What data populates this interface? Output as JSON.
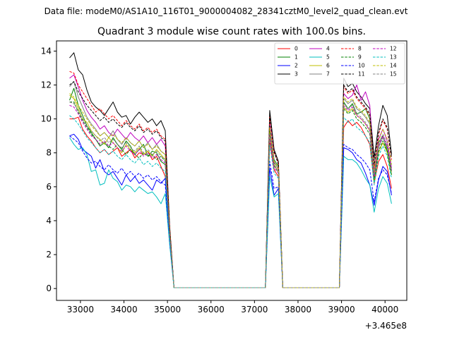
{
  "chart_data": {
    "type": "line",
    "suptitle": "Data file: modeM0/AS1A10_116T01_9000004082_28341cztM0_level2_quad_clean.evt",
    "title": "Quadrant 3 module wise count rates with 100.0s bins.",
    "xlabel": "",
    "ylabel": "",
    "x_offset_label": "+3.465e8",
    "xlim": [
      32450,
      40500
    ],
    "ylim": [
      -0.7,
      14.6
    ],
    "xticks": [
      33000,
      34000,
      35000,
      36000,
      37000,
      38000,
      39000,
      40000
    ],
    "xtick_labels": [
      "33000",
      "34000",
      "35000",
      "36000",
      "37000",
      "38000",
      "39000",
      "40000"
    ],
    "yticks": [
      0,
      2,
      4,
      6,
      8,
      10,
      12,
      14
    ],
    "ytick_labels": [
      "0",
      "2",
      "4",
      "6",
      "8",
      "10",
      "12",
      "14"
    ],
    "legend_position": "top-right",
    "legend_columns": 4,
    "x": [
      32750,
      32850,
      32950,
      33050,
      33150,
      33250,
      33350,
      33450,
      33550,
      33650,
      33750,
      33850,
      33950,
      34050,
      34150,
      34250,
      34350,
      34450,
      34550,
      34650,
      34750,
      34850,
      34950,
      35050,
      35150,
      35250,
      37150,
      37250,
      37350,
      37450,
      37550,
      37650,
      37750,
      38850,
      38950,
      39050,
      39150,
      39250,
      39350,
      39450,
      39550,
      39650,
      39750,
      39850,
      39950,
      40050,
      40150
    ],
    "series": [
      {
        "name": "0",
        "color": "#ff0000",
        "dash": "solid",
        "values": [
          10.0,
          10.0,
          10.1,
          9.4,
          9.0,
          8.7,
          8.3,
          8.0,
          8.2,
          7.9,
          8.1,
          8.3,
          7.8,
          8.0,
          8.2,
          7.7,
          8.0,
          7.9,
          8.1,
          7.6,
          7.8,
          7.2,
          6.6,
          3.0,
          0.05,
          0.05,
          0.05,
          0.05,
          8.7,
          7.0,
          6.6,
          0.05,
          0.05,
          0.05,
          0.05,
          9.5,
          9.9,
          9.6,
          9.8,
          9.5,
          9.0,
          8.5,
          6.2,
          7.5,
          7.9,
          7.2,
          5.9
        ]
      },
      {
        "name": "1",
        "color": "#008000",
        "dash": "solid",
        "values": [
          11.1,
          11.8,
          10.8,
          10.2,
          9.6,
          9.2,
          8.8,
          8.4,
          8.6,
          8.3,
          8.9,
          8.5,
          8.2,
          8.7,
          8.4,
          7.9,
          8.2,
          8.5,
          7.8,
          8.1,
          8.0,
          7.5,
          7.3,
          3.3,
          0.05,
          0.05,
          0.05,
          0.05,
          9.6,
          7.6,
          7.2,
          0.05,
          0.05,
          0.05,
          0.05,
          11.0,
          10.6,
          10.9,
          10.3,
          10.4,
          10.6,
          10.0,
          6.9,
          8.6,
          9.0,
          8.1,
          6.9
        ]
      },
      {
        "name": "2",
        "color": "#0000ff",
        "dash": "solid",
        "values": [
          9.0,
          9.1,
          8.8,
          8.2,
          8.0,
          7.8,
          7.1,
          7.6,
          6.9,
          6.7,
          6.9,
          6.5,
          6.1,
          6.7,
          6.3,
          6.6,
          6.2,
          6.4,
          6.1,
          5.8,
          6.4,
          6.2,
          6.5,
          2.8,
          0.05,
          0.05,
          0.05,
          0.05,
          7.1,
          5.5,
          5.9,
          0.05,
          0.05,
          0.05,
          0.05,
          8.3,
          8.2,
          8.0,
          7.6,
          7.4,
          6.8,
          6.1,
          4.9,
          6.4,
          7.2,
          6.9,
          5.5
        ]
      },
      {
        "name": "3",
        "color": "#000000",
        "dash": "solid",
        "values": [
          13.6,
          13.9,
          12.9,
          12.6,
          11.7,
          11.0,
          10.7,
          10.5,
          10.2,
          10.6,
          11.0,
          10.4,
          10.1,
          10.2,
          9.7,
          10.1,
          10.4,
          10.1,
          9.8,
          10.0,
          9.6,
          9.9,
          9.3,
          3.7,
          0.05,
          0.05,
          0.05,
          0.05,
          10.5,
          8.2,
          7.5,
          0.05,
          0.05,
          0.05,
          0.05,
          12.4,
          11.9,
          12.1,
          11.6,
          11.3,
          10.9,
          10.6,
          7.7,
          9.6,
          10.8,
          10.2,
          7.9
        ]
      },
      {
        "name": "4",
        "color": "#bf00bf",
        "dash": "solid",
        "values": [
          12.4,
          12.6,
          11.9,
          11.1,
          10.5,
          10.1,
          9.8,
          9.4,
          9.6,
          9.2,
          9.0,
          9.4,
          9.1,
          8.8,
          9.2,
          8.9,
          8.7,
          9.0,
          8.6,
          8.9,
          8.5,
          8.8,
          8.4,
          3.4,
          0.05,
          0.05,
          0.05,
          0.05,
          9.7,
          7.5,
          7.0,
          0.05,
          0.05,
          0.05,
          0.05,
          11.5,
          11.2,
          11.4,
          12.0,
          11.1,
          11.6,
          10.8,
          6.8,
          8.8,
          9.4,
          8.7,
          7.1
        ]
      },
      {
        "name": "5",
        "color": "#00bfbf",
        "dash": "solid",
        "values": [
          8.9,
          8.5,
          8.2,
          8.3,
          7.9,
          6.9,
          7.0,
          6.1,
          6.2,
          7.0,
          6.5,
          6.3,
          5.8,
          6.1,
          6.0,
          5.7,
          6.0,
          5.8,
          5.6,
          5.7,
          5.4,
          5.0,
          5.6,
          2.6,
          0.05,
          0.05,
          0.05,
          0.05,
          6.6,
          5.4,
          5.6,
          0.05,
          0.05,
          0.05,
          0.05,
          7.8,
          7.6,
          7.6,
          7.4,
          7.0,
          6.5,
          6.1,
          4.5,
          5.9,
          6.6,
          6.2,
          5.0
        ]
      },
      {
        "name": "6",
        "color": "#bfbf00",
        "dash": "solid",
        "values": [
          11.4,
          11.2,
          10.6,
          10.0,
          9.8,
          9.3,
          9.0,
          8.8,
          8.5,
          8.9,
          8.6,
          8.3,
          8.0,
          8.5,
          8.2,
          8.0,
          8.3,
          7.9,
          8.1,
          7.8,
          8.2,
          7.9,
          7.6,
          3.2,
          0.05,
          0.05,
          0.05,
          0.05,
          9.2,
          7.3,
          6.9,
          0.05,
          0.05,
          0.05,
          0.05,
          10.7,
          10.4,
          10.6,
          10.2,
          10.0,
          9.7,
          9.3,
          6.3,
          8.0,
          8.6,
          8.0,
          6.7
        ]
      },
      {
        "name": "7",
        "color": "#808080",
        "dash": "solid",
        "values": [
          11.9,
          12.2,
          11.3,
          10.7,
          10.1,
          9.7,
          9.4,
          9.0,
          9.2,
          8.9,
          9.3,
          8.8,
          8.5,
          8.9,
          8.6,
          8.4,
          8.7,
          8.3,
          8.6,
          8.2,
          8.5,
          8.1,
          7.9,
          3.3,
          0.05,
          0.05,
          0.05,
          0.05,
          9.4,
          7.4,
          7.1,
          0.05,
          0.05,
          0.05,
          0.05,
          11.2,
          10.9,
          11.1,
          10.6,
          10.4,
          10.1,
          9.7,
          6.5,
          8.3,
          8.9,
          8.3,
          6.9
        ]
      },
      {
        "name": "8",
        "color": "#ff0000",
        "dash": "dashed",
        "values": [
          12.8,
          12.7,
          12.0,
          11.6,
          11.2,
          10.8,
          10.4,
          10.6,
          10.3,
          10.0,
          10.2,
          9.9,
          9.6,
          9.9,
          9.6,
          9.4,
          9.7,
          9.3,
          9.5,
          9.2,
          9.4,
          9.0,
          8.8,
          3.6,
          0.05,
          0.05,
          0.05,
          0.05,
          10.1,
          8.0,
          7.4,
          0.05,
          0.05,
          0.05,
          0.05,
          11.9,
          11.5,
          11.7,
          11.2,
          10.9,
          10.6,
          10.2,
          7.2,
          9.1,
          9.9,
          9.4,
          7.6
        ]
      },
      {
        "name": "9",
        "color": "#008000",
        "dash": "dashed",
        "values": [
          11.0,
          11.0,
          10.4,
          9.9,
          9.5,
          9.1,
          8.8,
          8.5,
          8.7,
          8.4,
          8.2,
          8.5,
          8.2,
          7.9,
          8.2,
          7.9,
          7.7,
          8.0,
          7.8,
          7.9,
          7.6,
          7.8,
          7.5,
          3.1,
          0.05,
          0.05,
          0.05,
          0.05,
          9.3,
          7.3,
          6.8,
          0.05,
          0.05,
          0.05,
          0.05,
          10.6,
          10.3,
          10.5,
          10.0,
          9.8,
          9.5,
          9.1,
          6.4,
          8.1,
          8.7,
          8.1,
          6.7
        ]
      },
      {
        "name": "10",
        "color": "#0000ff",
        "dash": "dashed",
        "values": [
          9.0,
          8.8,
          8.6,
          8.1,
          7.7,
          7.4,
          7.5,
          7.2,
          7.0,
          7.3,
          7.0,
          6.8,
          7.1,
          6.7,
          6.9,
          6.6,
          6.8,
          6.5,
          6.7,
          6.4,
          6.6,
          6.3,
          6.1,
          2.8,
          0.05,
          0.05,
          0.05,
          0.05,
          7.5,
          5.9,
          6.0,
          0.05,
          0.05,
          0.05,
          0.05,
          8.5,
          8.3,
          8.2,
          7.9,
          7.7,
          7.4,
          7.0,
          5.1,
          6.5,
          7.0,
          6.7,
          5.6
        ]
      },
      {
        "name": "11",
        "color": "#000000",
        "dash": "dashed",
        "values": [
          12.0,
          12.2,
          11.6,
          11.2,
          10.8,
          10.5,
          10.2,
          9.9,
          10.1,
          9.8,
          10.0,
          9.7,
          9.5,
          9.8,
          9.5,
          9.3,
          9.6,
          9.2,
          9.4,
          9.1,
          9.3,
          8.9,
          8.7,
          3.6,
          0.05,
          0.05,
          0.05,
          0.05,
          10.2,
          8.1,
          7.3,
          0.05,
          0.05,
          0.05,
          0.05,
          12.0,
          11.6,
          11.8,
          11.3,
          11.0,
          10.7,
          10.3,
          7.3,
          9.2,
          10.0,
          9.5,
          7.7
        ]
      },
      {
        "name": "12",
        "color": "#bf00bf",
        "dash": "dashed",
        "values": [
          10.8,
          10.7,
          10.3,
          9.8,
          9.4,
          9.0,
          8.8,
          8.5,
          8.7,
          8.4,
          8.6,
          8.3,
          8.1,
          8.4,
          8.1,
          7.9,
          8.2,
          7.8,
          8.0,
          7.7,
          7.9,
          7.6,
          7.4,
          3.1,
          0.05,
          0.05,
          0.05,
          0.05,
          9.0,
          7.1,
          6.8,
          0.05,
          0.05,
          0.05,
          0.05,
          10.8,
          10.5,
          10.7,
          10.2,
          10.0,
          9.7,
          9.3,
          6.6,
          8.4,
          9.0,
          8.4,
          7.0
        ]
      },
      {
        "name": "13",
        "color": "#00bfbf",
        "dash": "dashed",
        "values": [
          10.2,
          10.0,
          9.7,
          9.3,
          8.9,
          8.6,
          8.3,
          8.0,
          8.2,
          7.9,
          8.1,
          7.8,
          7.6,
          7.9,
          7.6,
          7.4,
          7.7,
          7.3,
          7.5,
          7.2,
          7.4,
          7.1,
          6.9,
          3.0,
          0.05,
          0.05,
          0.05,
          0.05,
          8.5,
          6.8,
          6.5,
          0.05,
          0.05,
          0.05,
          0.05,
          10.1,
          9.8,
          10.0,
          9.5,
          9.3,
          9.0,
          8.6,
          6.1,
          7.8,
          8.4,
          7.8,
          6.5
        ]
      },
      {
        "name": "14",
        "color": "#bfbf00",
        "dash": "dashed",
        "values": [
          11.5,
          11.3,
          10.8,
          10.4,
          10.0,
          9.6,
          9.3,
          9.0,
          9.2,
          8.9,
          9.1,
          8.8,
          8.6,
          8.9,
          8.6,
          8.4,
          8.7,
          8.3,
          8.5,
          8.2,
          8.4,
          8.1,
          7.9,
          3.3,
          0.05,
          0.05,
          0.05,
          0.05,
          9.5,
          7.5,
          7.1,
          0.05,
          0.05,
          0.05,
          0.05,
          11.3,
          11.0,
          11.2,
          10.7,
          10.5,
          10.2,
          9.8,
          6.9,
          8.7,
          9.4,
          8.8,
          7.3
        ]
      },
      {
        "name": "15",
        "color": "#808080",
        "dash": "dashed",
        "values": [
          11.0,
          10.9,
          10.5,
          10.0,
          9.6,
          9.3,
          9.0,
          8.7,
          8.9,
          8.6,
          8.8,
          8.5,
          8.3,
          8.6,
          8.3,
          8.1,
          8.4,
          8.0,
          8.2,
          7.9,
          8.1,
          7.8,
          7.6,
          3.2,
          0.05,
          0.05,
          0.05,
          0.05,
          9.1,
          7.2,
          6.9,
          0.05,
          0.05,
          0.05,
          0.05,
          10.9,
          10.6,
          10.8,
          10.3,
          10.1,
          9.8,
          9.4,
          6.7,
          8.5,
          9.1,
          8.5,
          7.1
        ]
      }
    ]
  }
}
